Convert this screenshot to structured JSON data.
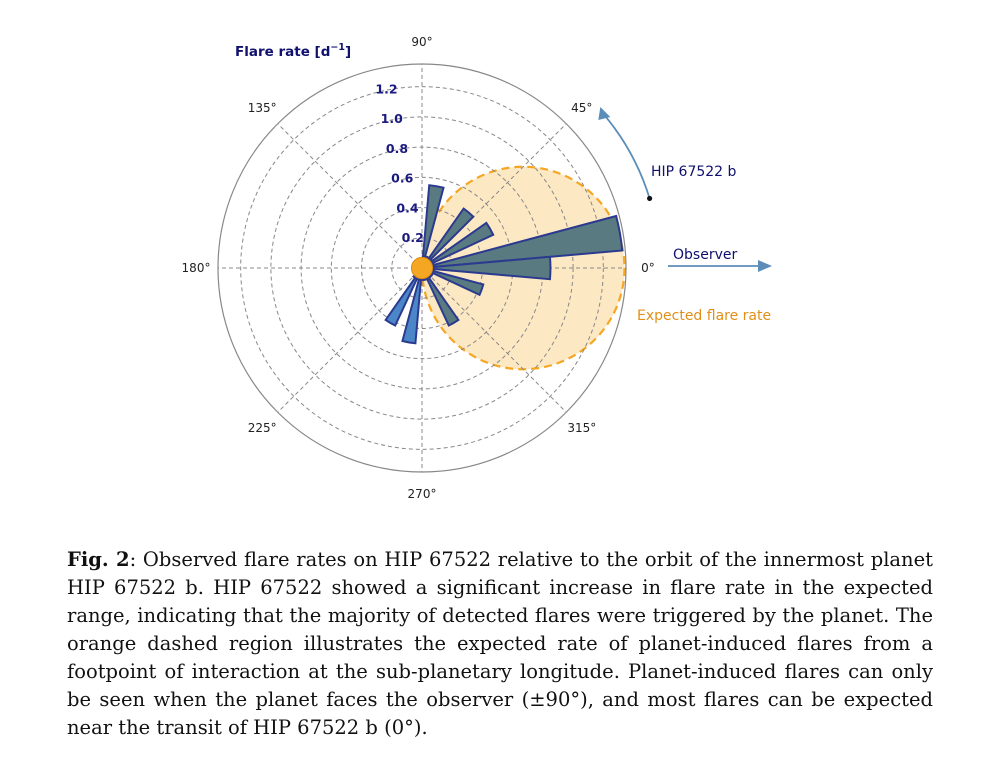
{
  "chart_data": {
    "type": "polar-bar",
    "axis_title": "Flare rate [d",
    "axis_title_sup": "−1",
    "axis_title_end": "]",
    "angle_ticks": [
      {
        "deg": 0,
        "label": "0°"
      },
      {
        "deg": 45,
        "label": "45°"
      },
      {
        "deg": 90,
        "label": "90°"
      },
      {
        "deg": 135,
        "label": "135°"
      },
      {
        "deg": 180,
        "label": "180°"
      },
      {
        "deg": 225,
        "label": "225°"
      },
      {
        "deg": 270,
        "label": "270°"
      },
      {
        "deg": 315,
        "label": "315°"
      }
    ],
    "radial_ticks": [
      {
        "value": 0.2,
        "label": "0.2"
      },
      {
        "value": 0.4,
        "label": "0.4"
      },
      {
        "value": 0.6,
        "label": "0.6"
      },
      {
        "value": 0.8,
        "label": "0.8"
      },
      {
        "value": 1.0,
        "label": "1.0"
      },
      {
        "value": 1.2,
        "label": "1.2"
      }
    ],
    "rlim": [
      0,
      1.35
    ],
    "grid": true,
    "bins": [
      {
        "start_deg": 5,
        "end_deg": 15,
        "value": 1.33,
        "side": "observed"
      },
      {
        "start_deg": -5,
        "end_deg": 5,
        "value": 0.85,
        "side": "observed"
      },
      {
        "start_deg": 25,
        "end_deg": 35,
        "value": 0.52,
        "side": "observed"
      },
      {
        "start_deg": 45,
        "end_deg": 55,
        "value": 0.48,
        "side": "observed"
      },
      {
        "start_deg": 75,
        "end_deg": 85,
        "value": 0.55,
        "side": "observed"
      },
      {
        "start_deg": -25,
        "end_deg": -15,
        "value": 0.42,
        "side": "observed"
      },
      {
        "start_deg": -65,
        "end_deg": -55,
        "value": 0.42,
        "side": "observed"
      },
      {
        "start_deg": 35,
        "end_deg": 45,
        "value": 0.08,
        "side": "observed"
      },
      {
        "start_deg": 55,
        "end_deg": 65,
        "value": 0.08,
        "side": "observed"
      },
      {
        "start_deg": 65,
        "end_deg": 75,
        "value": 0.08,
        "side": "observed"
      },
      {
        "start_deg": 15,
        "end_deg": 25,
        "value": 0.08,
        "side": "observed"
      },
      {
        "start_deg": -15,
        "end_deg": -5,
        "value": 0.08,
        "side": "observed"
      },
      {
        "start_deg": -35,
        "end_deg": -25,
        "value": 0.08,
        "side": "observed"
      },
      {
        "start_deg": -45,
        "end_deg": -35,
        "value": 0.08,
        "side": "observed"
      },
      {
        "start_deg": -55,
        "end_deg": -45,
        "value": 0.08,
        "side": "observed"
      },
      {
        "start_deg": -75,
        "end_deg": -65,
        "value": 0.08,
        "side": "observed"
      },
      {
        "start_deg": -85,
        "end_deg": -75,
        "value": 0.08,
        "side": "observed"
      },
      {
        "start_deg": 255,
        "end_deg": 265,
        "value": 0.5,
        "side": "background"
      },
      {
        "start_deg": 235,
        "end_deg": 245,
        "value": 0.42,
        "side": "background"
      },
      {
        "start_deg": 245,
        "end_deg": 255,
        "value": 0.08,
        "side": "background"
      },
      {
        "start_deg": 225,
        "end_deg": 235,
        "value": 0.08,
        "side": "background"
      },
      {
        "start_deg": 265,
        "end_deg": 275,
        "value": 0.08,
        "side": "background"
      }
    ],
    "expected_region": {
      "center_r": 0.67,
      "center_deg": 0,
      "radius": 0.67,
      "label": "Expected flare rate"
    },
    "star_radius": 0.07,
    "planet_label": "HIP 67522 b",
    "observer_label": "Observer",
    "colors": {
      "observed_fill": "#587a80",
      "background_fill": "#4a86c8",
      "bar_edge": "#2b3a8f",
      "expected_fill": "#fde8c4",
      "expected_edge": "#f5a623",
      "star": "#f5a623",
      "grid": "#888888",
      "arrow": "#5b8db8",
      "navy": "#10106e"
    }
  },
  "caption": {
    "label": "Fig. 2",
    "text": ": Observed flare rates on HIP 67522 relative to the orbit of the innermost planet HIP 67522 b. HIP 67522 showed a significant increase in flare rate in the expected range, indicating that the majority of detected flares were triggered by the planet. The orange dashed region illustrates the expected rate of planet-induced flares from a footpoint of interaction at the sub-planetary longitude. Planet-induced flares can only be seen when the planet faces the observer (±90°), and most flares can be expected near the transit of HIP 67522 b (0°)."
  }
}
